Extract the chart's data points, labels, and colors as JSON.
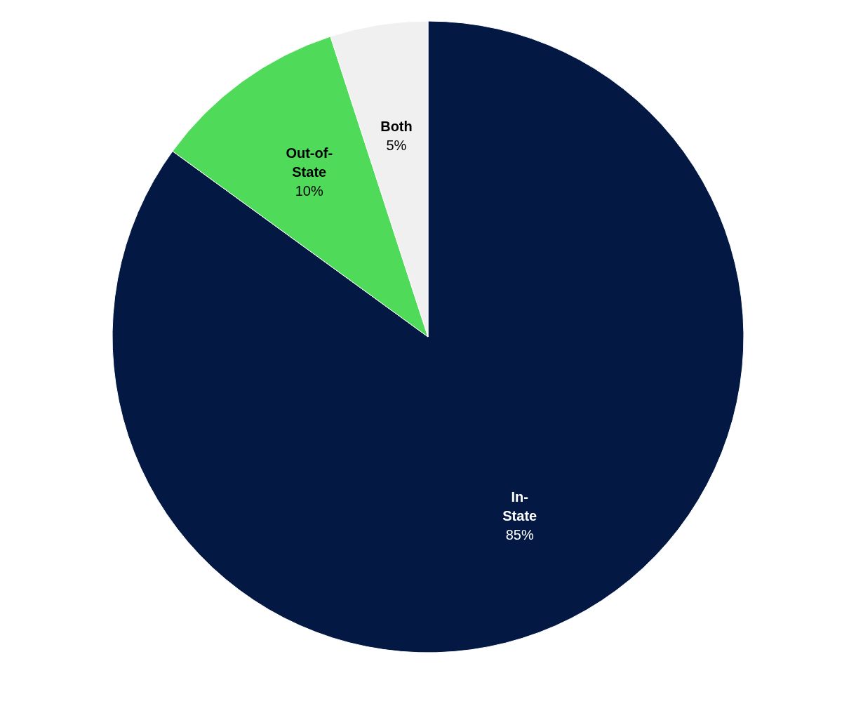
{
  "chart_data": {
    "type": "pie",
    "categories": [
      "In-State",
      "Out-of-State",
      "Both"
    ],
    "values": [
      85,
      10,
      5
    ],
    "colors": [
      "#031842",
      "#50da5a",
      "#f0f0f0"
    ],
    "value_labels": [
      "85%",
      "10%",
      "5%"
    ],
    "legend": false
  }
}
